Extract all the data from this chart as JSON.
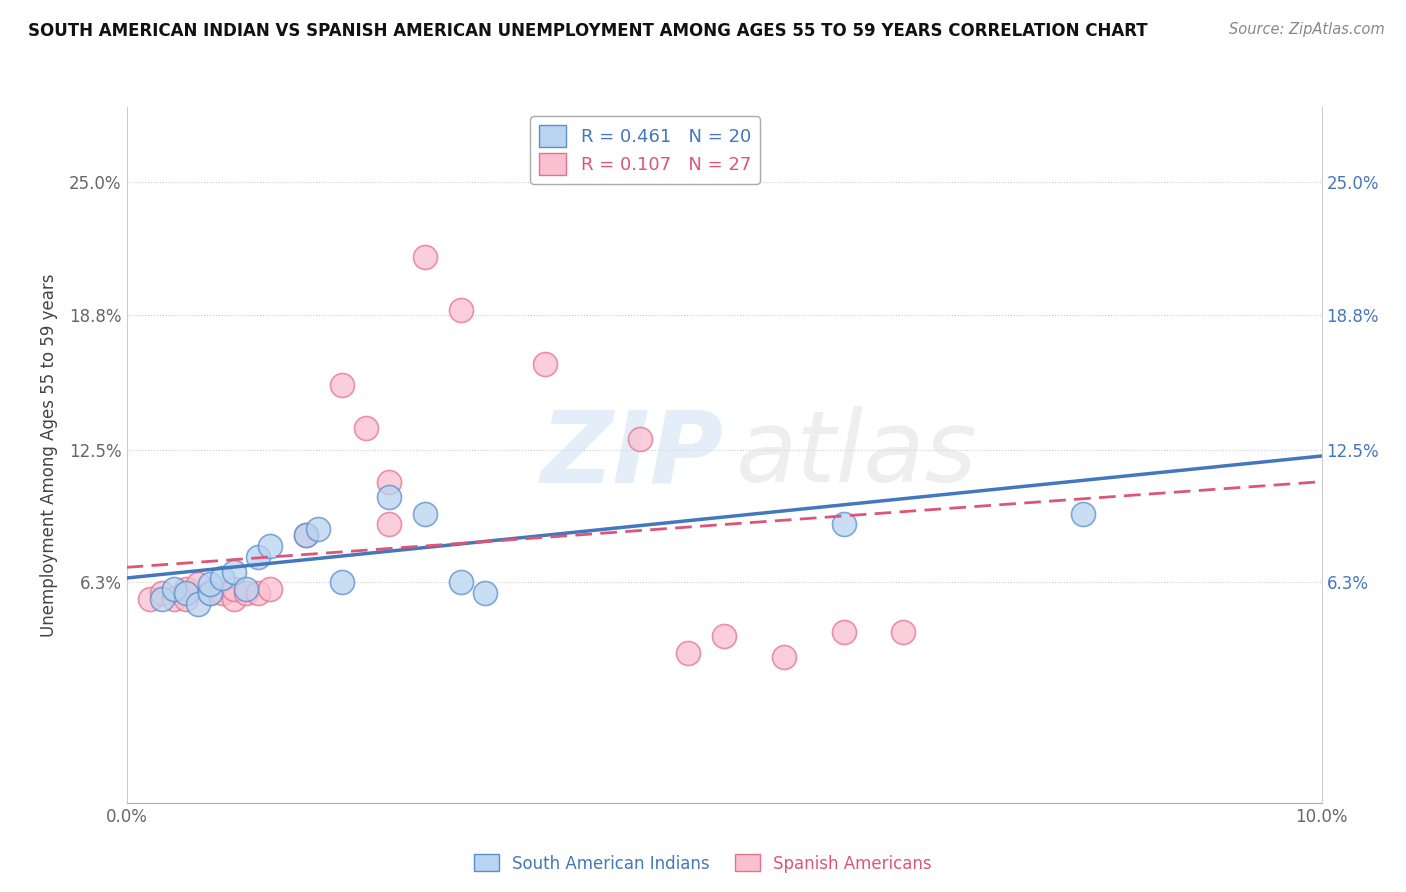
{
  "title": "SOUTH AMERICAN INDIAN VS SPANISH AMERICAN UNEMPLOYMENT AMONG AGES 55 TO 59 YEARS CORRELATION CHART",
  "source": "Source: ZipAtlas.com",
  "ylabel": "Unemployment Among Ages 55 to 59 years",
  "xlim": [
    0.0,
    0.1
  ],
  "ylim": [
    -0.04,
    0.285
  ],
  "yticks": [
    0.063,
    0.125,
    0.188,
    0.25
  ],
  "ytick_labels": [
    "6.3%",
    "12.5%",
    "18.8%",
    "25.0%"
  ],
  "xticks": [
    0.0,
    0.1
  ],
  "xtick_labels": [
    "0.0%",
    "10.0%"
  ],
  "blue_scatter": [
    [
      0.003,
      0.055
    ],
    [
      0.004,
      0.06
    ],
    [
      0.005,
      0.058
    ],
    [
      0.006,
      0.053
    ],
    [
      0.007,
      0.058
    ],
    [
      0.007,
      0.062
    ],
    [
      0.008,
      0.065
    ],
    [
      0.009,
      0.068
    ],
    [
      0.01,
      0.06
    ],
    [
      0.011,
      0.075
    ],
    [
      0.012,
      0.08
    ],
    [
      0.015,
      0.085
    ],
    [
      0.016,
      0.088
    ],
    [
      0.018,
      0.063
    ],
    [
      0.022,
      0.103
    ],
    [
      0.025,
      0.095
    ],
    [
      0.028,
      0.063
    ],
    [
      0.03,
      0.058
    ],
    [
      0.06,
      0.09
    ],
    [
      0.08,
      0.095
    ]
  ],
  "pink_scatter": [
    [
      0.002,
      0.055
    ],
    [
      0.003,
      0.058
    ],
    [
      0.004,
      0.055
    ],
    [
      0.005,
      0.06
    ],
    [
      0.005,
      0.055
    ],
    [
      0.006,
      0.062
    ],
    [
      0.007,
      0.058
    ],
    [
      0.008,
      0.058
    ],
    [
      0.009,
      0.055
    ],
    [
      0.009,
      0.06
    ],
    [
      0.01,
      0.058
    ],
    [
      0.011,
      0.058
    ],
    [
      0.012,
      0.06
    ],
    [
      0.015,
      0.085
    ],
    [
      0.018,
      0.155
    ],
    [
      0.02,
      0.135
    ],
    [
      0.022,
      0.09
    ],
    [
      0.022,
      0.11
    ],
    [
      0.025,
      0.215
    ],
    [
      0.028,
      0.19
    ],
    [
      0.035,
      0.165
    ],
    [
      0.043,
      0.13
    ],
    [
      0.05,
      0.038
    ],
    [
      0.055,
      0.028
    ],
    [
      0.06,
      0.04
    ],
    [
      0.065,
      0.04
    ],
    [
      0.047,
      0.03
    ]
  ],
  "blue_line_x": [
    0.0,
    0.1
  ],
  "blue_line_y": [
    0.065,
    0.122
  ],
  "pink_line_x": [
    0.0,
    0.1
  ],
  "pink_line_y": [
    0.07,
    0.11
  ],
  "blue_color": "#b8d4f0",
  "pink_color": "#f9c0d0",
  "blue_edge_color": "#5a8fcc",
  "pink_edge_color": "#e87090",
  "blue_line_color": "#4477bb",
  "pink_line_color": "#dd5577",
  "background_color": "#ffffff",
  "grid_color": "#cccccc",
  "legend_labels": [
    "R = 0.461   N = 20",
    "R = 0.107   N = 27"
  ],
  "bottom_labels": [
    "South American Indians",
    "Spanish Americans"
  ]
}
